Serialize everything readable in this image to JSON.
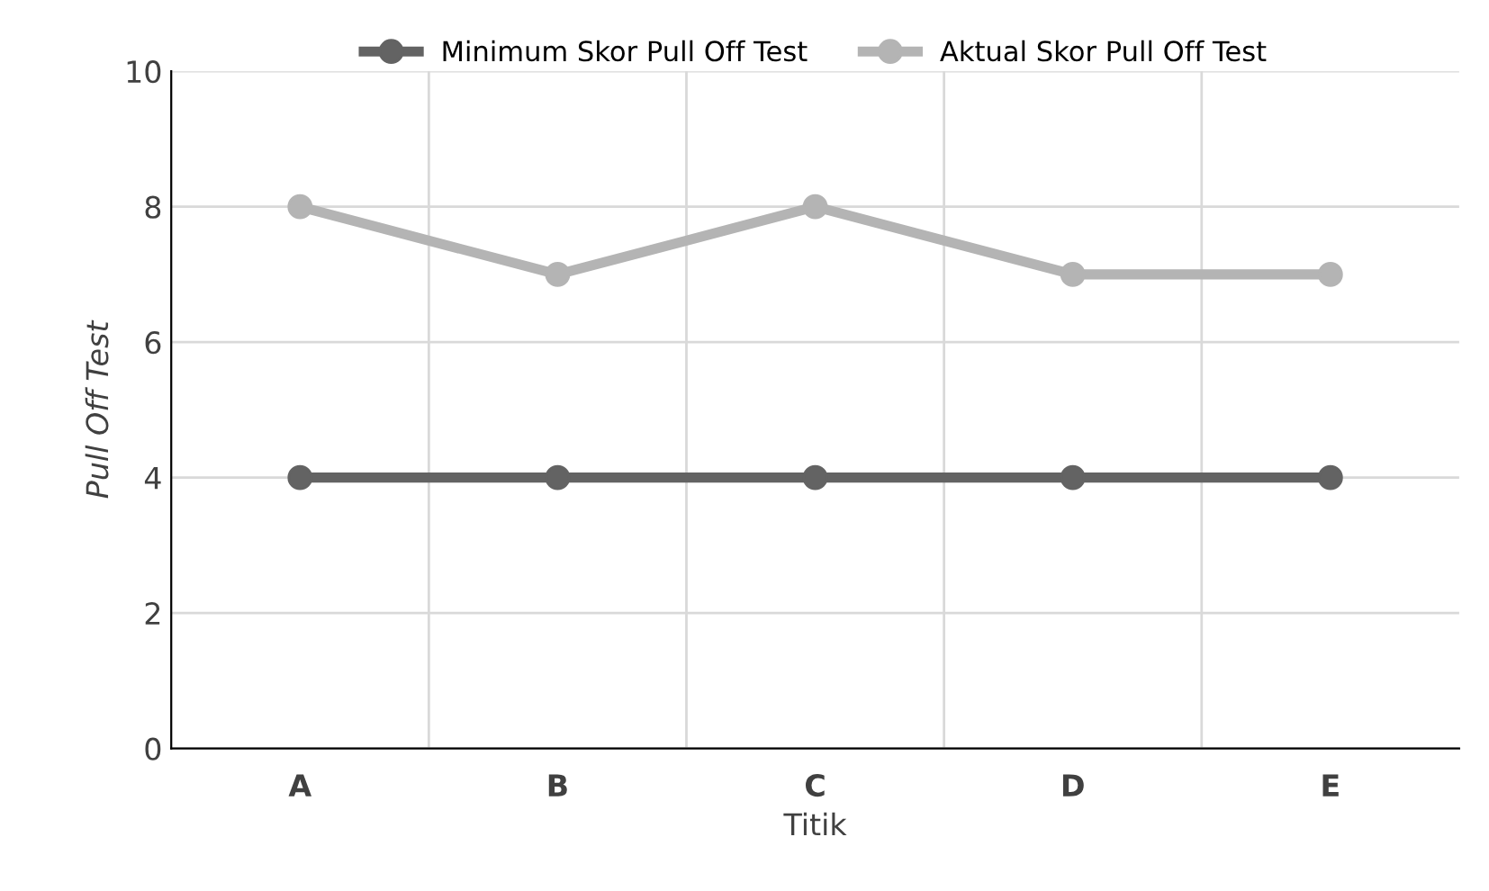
{
  "chart_data": {
    "type": "line",
    "xlabel": "Titik",
    "ylabel": "Pull Off Test",
    "categories": [
      "A",
      "B",
      "C",
      "D",
      "E"
    ],
    "series": [
      {
        "name": "Minimum Skor Pull Off Test",
        "color": "#636363",
        "values": [
          4,
          4,
          4,
          4,
          4
        ]
      },
      {
        "name": "Aktual Skor Pull Off Test",
        "color": "#b4b4b4",
        "values": [
          8,
          7,
          8,
          7,
          7
        ]
      }
    ],
    "ylim": [
      0,
      10
    ],
    "yticks": [
      0,
      2,
      4,
      6,
      8,
      10
    ],
    "grid": true,
    "legend": "top",
    "marker": "circle",
    "line_style": "solid"
  }
}
